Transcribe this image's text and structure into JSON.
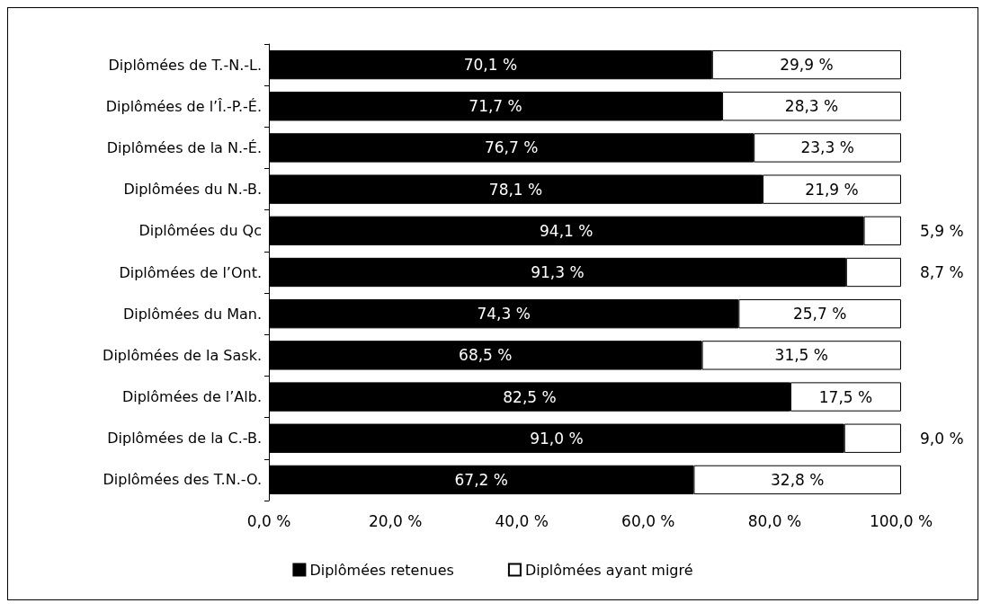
{
  "chart_data": {
    "type": "bar",
    "orientation": "horizontal",
    "stacked": true,
    "categories": [
      "Diplômées de T.-N.-L.",
      "Diplômées de l’Î.-P.-É.",
      "Diplômées de la N.-É.",
      "Diplômées du N.-B.",
      "Diplômées du Qc",
      "Diplômées de l’Ont.",
      "Diplômées du Man.",
      "Diplômées de la Sask.",
      "Diplômées de l’Alb.",
      "Diplômées de la C.-B.",
      "Diplômées des T.N.-O."
    ],
    "series": [
      {
        "name": "Diplômées retenues",
        "color": "#000000",
        "values": [
          70.1,
          71.7,
          76.7,
          78.1,
          94.1,
          91.3,
          74.3,
          68.5,
          82.5,
          91.0,
          67.2
        ],
        "value_labels": [
          "70,1 %",
          "71,7 %",
          "76,7 %",
          "78,1 %",
          "94,1 %",
          "91,3 %",
          "74,3 %",
          "68,5 %",
          "82,5 %",
          "91,0 %",
          "67,2 %"
        ]
      },
      {
        "name": "Diplômées ayant migré",
        "color": "#ffffff",
        "values": [
          29.9,
          28.3,
          23.3,
          21.9,
          5.9,
          8.7,
          25.7,
          31.5,
          17.5,
          9.0,
          32.8
        ],
        "value_labels": [
          "29,9 %",
          "28,3 %",
          "23,3 %",
          "21,9 %",
          "5,9 %",
          "8,7 %",
          "25,7 %",
          "31,5 %",
          "17,5 %",
          "9,0 %",
          "32,8 %"
        ]
      }
    ],
    "xlim": [
      0,
      100
    ],
    "xticks": [
      {
        "value": 0,
        "label": "0,0 %"
      },
      {
        "value": 20,
        "label": "20,0 %"
      },
      {
        "value": 40,
        "label": "40,0 %"
      },
      {
        "value": 60,
        "label": "60,0 %"
      },
      {
        "value": 80,
        "label": "80,0 %"
      },
      {
        "value": 100,
        "label": "100,0 %"
      }
    ],
    "grid": false,
    "legend": "bottom"
  }
}
